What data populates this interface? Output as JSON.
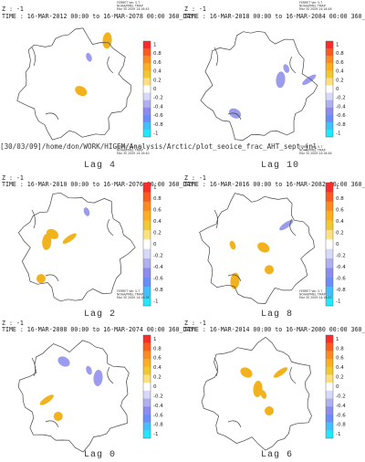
{
  "path_text": "[30/03/09]/home/don/WORK/HIGEM/Analysis/Arctic/plot_seoice_frac_AHT_sept.jnl",
  "colorbar_ticks": [
    1,
    0.8,
    0.6,
    0.4,
    0.2,
    0,
    -0.2,
    -0.4,
    -0.6,
    -0.8,
    -1
  ],
  "panels": [
    {
      "stamp": [
        "FERRET Ver. 5.7",
        "NOAA/PMEL TMAP",
        "Mar 30 2009 14:16:45"
      ],
      "z": "Z : -1",
      "time": "TIME : 16-MAR-2012 00:00 to 16-MAR-2078 00:00 360_DAY",
      "lag": "Lag 4"
    },
    {
      "stamp": [
        "FERRET Ver. 5.7",
        "NOAA/PMEL TMAP",
        "Mar 30 2009 14:16:48"
      ],
      "z": "Z : -1",
      "time": "TIME : 16-MAR-2018 00:00 to 16-MAR-2084 00:00 360_DAY",
      "lag": "Lag 10"
    },
    {
      "stamp": [
        "FERRET Ver. 5.7",
        "NOAA/PMEL TMAP",
        "Mar 30 2009 14:16:40"
      ],
      "z": "Z : -1",
      "time": "TIME : 16-MAR-2010 00:00 to 16-MAR-2076 00:00 360_DAY",
      "lag": "Lag 2"
    },
    {
      "stamp": [
        "FERRET Ver. 5.7",
        "NOAA/PMEL TMAP",
        "Mar 30 2009 14:16:46"
      ],
      "z": "Z : -1",
      "time": "TIME : 16-MAR-2016 00:00 to 16-MAR-2082 00:00 360_DAY",
      "lag": "Lag 8"
    },
    {
      "stamp": [
        "FERRET Ver. 5.7",
        "NOAA/PMEL TMAP",
        "Mar 30 2009 14:16:38"
      ],
      "z": "Z : -1",
      "time": "TIME : 16-MAR-2008 00:00 to 16-MAR-2074 00:00 360_DAY",
      "lag": "Lag 0"
    },
    {
      "stamp": [
        "FERRET Ver. 5.7",
        "NOAA/PMEL TMAP",
        "Mar 30 2009 14:16:43"
      ],
      "z": "Z : -1",
      "time": "TIME : 16-MAR-2014 00:00 to 16-MAR-2080 00:00 360_DAY",
      "lag": "Lag 6"
    }
  ]
}
